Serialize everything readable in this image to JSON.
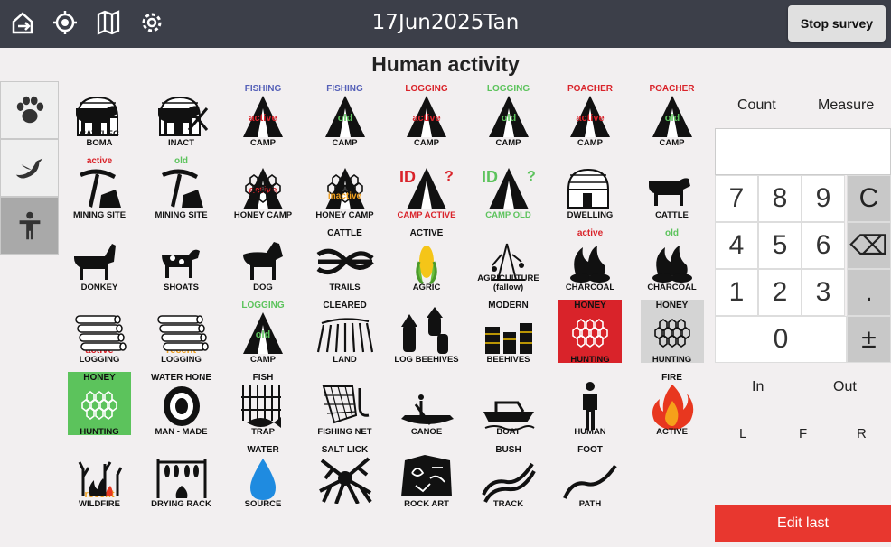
{
  "app": {
    "title": "17Jun2025Tan",
    "stop_label": "Stop survey",
    "heading": "Human activity"
  },
  "nav_icons": [
    "exit-icon",
    "locate-icon",
    "map-icon",
    "settings-icon"
  ],
  "category_tabs": [
    "paw-icon",
    "bird-icon",
    "person-icon"
  ],
  "tiles": [
    {
      "label": "CATTLEC\nBOMA",
      "top": "",
      "sub": ""
    },
    {
      "label": "INACT",
      "top": "",
      "sub": ""
    },
    {
      "label": "CAMP",
      "top": "FISHING",
      "sub": "active"
    },
    {
      "label": "CAMP",
      "top": "FISHING",
      "sub": "old"
    },
    {
      "label": "CAMP",
      "top": "LOGGING",
      "sub": "active"
    },
    {
      "label": "CAMP",
      "top": "LOGGING",
      "sub": "old"
    },
    {
      "label": "CAMP",
      "top": "POACHER",
      "sub": "active"
    },
    {
      "label": "CAMP",
      "top": "POACHER",
      "sub": "old"
    },
    {
      "label": "MINING SITE",
      "top": "active",
      "sub": ""
    },
    {
      "label": "MINING SITE",
      "top": "old",
      "sub": ""
    },
    {
      "label": "HONEY CAMP",
      "top": "",
      "sub": "active"
    },
    {
      "label": "HONEY CAMP",
      "top": "",
      "sub": "inactive"
    },
    {
      "label": "CAMP ACTIVE",
      "top": "",
      "sub": "ID ?"
    },
    {
      "label": "CAMP OLD",
      "top": "",
      "sub": "ID ?"
    },
    {
      "label": "DWELLING",
      "top": "",
      "sub": ""
    },
    {
      "label": "CATTLE",
      "top": "",
      "sub": ""
    },
    {
      "label": "DONKEY",
      "top": "",
      "sub": ""
    },
    {
      "label": "SHOATS",
      "top": "",
      "sub": ""
    },
    {
      "label": "DOG",
      "top": "",
      "sub": ""
    },
    {
      "label": "TRAILS",
      "top": "CATTLE",
      "sub": ""
    },
    {
      "label": "AGRIC",
      "top": "ACTIVE",
      "sub": ""
    },
    {
      "label": "AGRICULTURE\n(fallow)",
      "top": "",
      "sub": ""
    },
    {
      "label": "CHARCOAL",
      "top": "active",
      "sub": ""
    },
    {
      "label": "CHARCOAL",
      "top": "old",
      "sub": ""
    },
    {
      "label": "LOGGING",
      "top": "",
      "sub": "active"
    },
    {
      "label": "LOGGING",
      "top": "",
      "sub": "recent"
    },
    {
      "label": "CAMP",
      "top": "LOGGING",
      "sub": "old"
    },
    {
      "label": "LAND",
      "top": "CLEARED",
      "sub": ""
    },
    {
      "label": "LOG BEEHIVES",
      "top": "",
      "sub": ""
    },
    {
      "label": "BEEHIVES",
      "top": "MODERN",
      "sub": ""
    },
    {
      "label": "HUNTING",
      "top": "HONEY",
      "sub": ""
    },
    {
      "label": "HUNTING",
      "top": "HONEY",
      "sub": ""
    },
    {
      "label": "HUNTING",
      "top": "HONEY",
      "sub": ""
    },
    {
      "label": "MAN - MADE",
      "top": "WATER HONE",
      "sub": ""
    },
    {
      "label": "TRAP",
      "top": "FISH",
      "sub": ""
    },
    {
      "label": "FISHING NET",
      "top": "",
      "sub": ""
    },
    {
      "label": "CANOE",
      "top": "",
      "sub": ""
    },
    {
      "label": "BOAT",
      "top": "",
      "sub": ""
    },
    {
      "label": "HUMAN",
      "top": "",
      "sub": ""
    },
    {
      "label": "ACTIVE",
      "top": "FIRE",
      "sub": ""
    },
    {
      "label": "WILDFIRE",
      "top": "",
      "sub": "recent"
    },
    {
      "label": "DRYING RACK",
      "top": "",
      "sub": ""
    },
    {
      "label": "SOURCE",
      "top": "WATER",
      "sub": ""
    },
    {
      "label": "",
      "top": "SALT LICK",
      "sub": ""
    },
    {
      "label": "ROCK ART",
      "top": "",
      "sub": ""
    },
    {
      "label": "TRACK",
      "top": "BUSH",
      "sub": ""
    },
    {
      "label": "PATH",
      "top": "FOOT",
      "sub": ""
    }
  ],
  "right": {
    "count": "Count",
    "measure": "Measure",
    "display_value": "",
    "keys": [
      "7",
      "8",
      "9",
      "C",
      "4",
      "5",
      "6",
      "⌫",
      "1",
      "2",
      "3",
      ".",
      "0",
      "±"
    ],
    "in": "In",
    "out": "Out",
    "l": "L",
    "f": "F",
    "r": "R",
    "edit_last": "Edit last"
  },
  "colors": {
    "red": "#d9232a",
    "green": "#5cc35c",
    "orange": "#f0a020",
    "blue": "#5560b8",
    "gray_tile": "#d4d4d4"
  }
}
